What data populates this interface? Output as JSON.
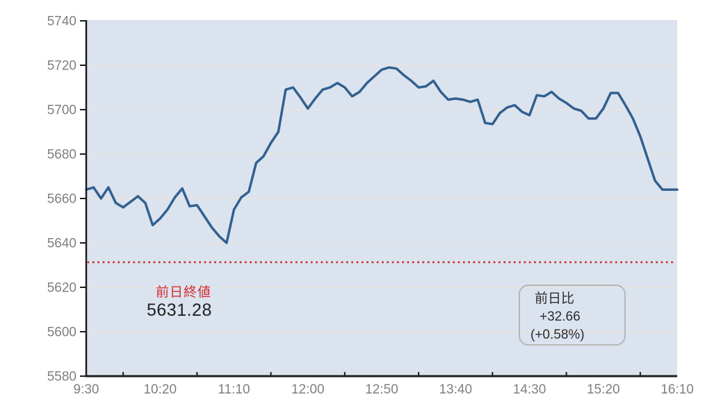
{
  "chart_data": {
    "type": "line",
    "title": "",
    "xlabel": "",
    "ylabel": "",
    "grid": "horizontal-only",
    "legend": "none",
    "x_axis": {
      "start_min": 0,
      "end_min": 400,
      "major_tick_interval_min": 50,
      "minor_tick_interval_min": 25,
      "tick_labels": [
        "9:30",
        "10:20",
        "11:10",
        "12:00",
        "12:50",
        "13:40",
        "14:30",
        "15:20",
        "16:10"
      ]
    },
    "y_axis": {
      "ylim": [
        5580,
        5740
      ],
      "ticks": [
        5580,
        5600,
        5620,
        5640,
        5660,
        5680,
        5700,
        5720,
        5740
      ]
    },
    "series": [
      {
        "name": "intraday-price",
        "interval_min": 5,
        "values": [
          5664,
          5665,
          5660,
          5665,
          5658,
          5656,
          5658.5,
          5661,
          5658,
          5648,
          5651,
          5655,
          5660.5,
          5664.5,
          5656.5,
          5657,
          5652,
          5647,
          5643,
          5640,
          5655,
          5660.5,
          5663,
          5676,
          5679,
          5685,
          5690,
          5709,
          5710,
          5705.5,
          5700.5,
          5705,
          5709,
          5710,
          5712,
          5710,
          5706,
          5708,
          5712,
          5715,
          5718,
          5719,
          5718.5,
          5715.5,
          5713,
          5710,
          5710.5,
          5713,
          5708,
          5704.5,
          5705,
          5704.5,
          5703.5,
          5704.5,
          5694,
          5693.5,
          5698.5,
          5701,
          5702,
          5699,
          5697.5,
          5706.5,
          5706,
          5708,
          5705,
          5703,
          5700.5,
          5699.5,
          5696,
          5696,
          5700.5,
          5707.5,
          5707.5,
          5702,
          5696,
          5688,
          5678,
          5668,
          5664,
          5664,
          5664
        ]
      }
    ],
    "baseline": {
      "value": 5631.28,
      "label": "前日終値",
      "value_label": "5631.28"
    },
    "change_box": {
      "title": "前日比",
      "change": "+32.66",
      "change_pct": "(+0.58%)"
    },
    "colors": {
      "line": "#31608f",
      "plot_bg": "#dbe3ef",
      "grid": "#e9e5de",
      "grid_top_edge": "#d6dade",
      "axis": "#1c1c1c",
      "tick_label": "#7f7f7f",
      "baseline_dots": "#c93535",
      "baseline_label_text": "#d32b2b",
      "baseline_value_text": "#1f1f1f",
      "box_border": "#b5b5b5",
      "box_text": "#2b2b2b"
    }
  }
}
